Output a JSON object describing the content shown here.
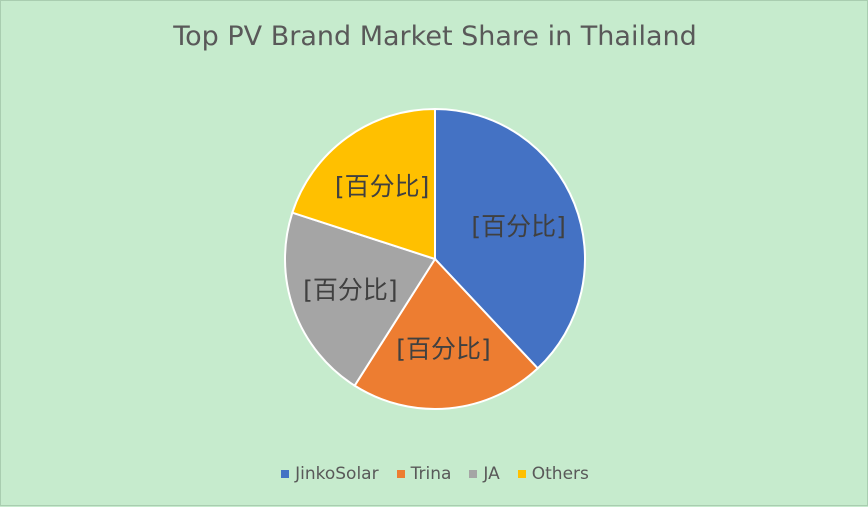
{
  "chart_data": {
    "type": "pie",
    "title": "Top PV Brand Market Share in Thailand",
    "categories": [
      "JinkoSolar",
      "Trina",
      "JA",
      "Others"
    ],
    "values": [
      38,
      21,
      21,
      20
    ],
    "colors": [
      "#4472c4",
      "#ed7d31",
      "#a5a5a5",
      "#ffc000"
    ],
    "data_labels": [
      "[百分比]",
      "[百分比]",
      "[百分比]",
      "[百分比]"
    ],
    "start_angle_deg": 0,
    "direction": "clockwise",
    "legend_position": "bottom"
  }
}
